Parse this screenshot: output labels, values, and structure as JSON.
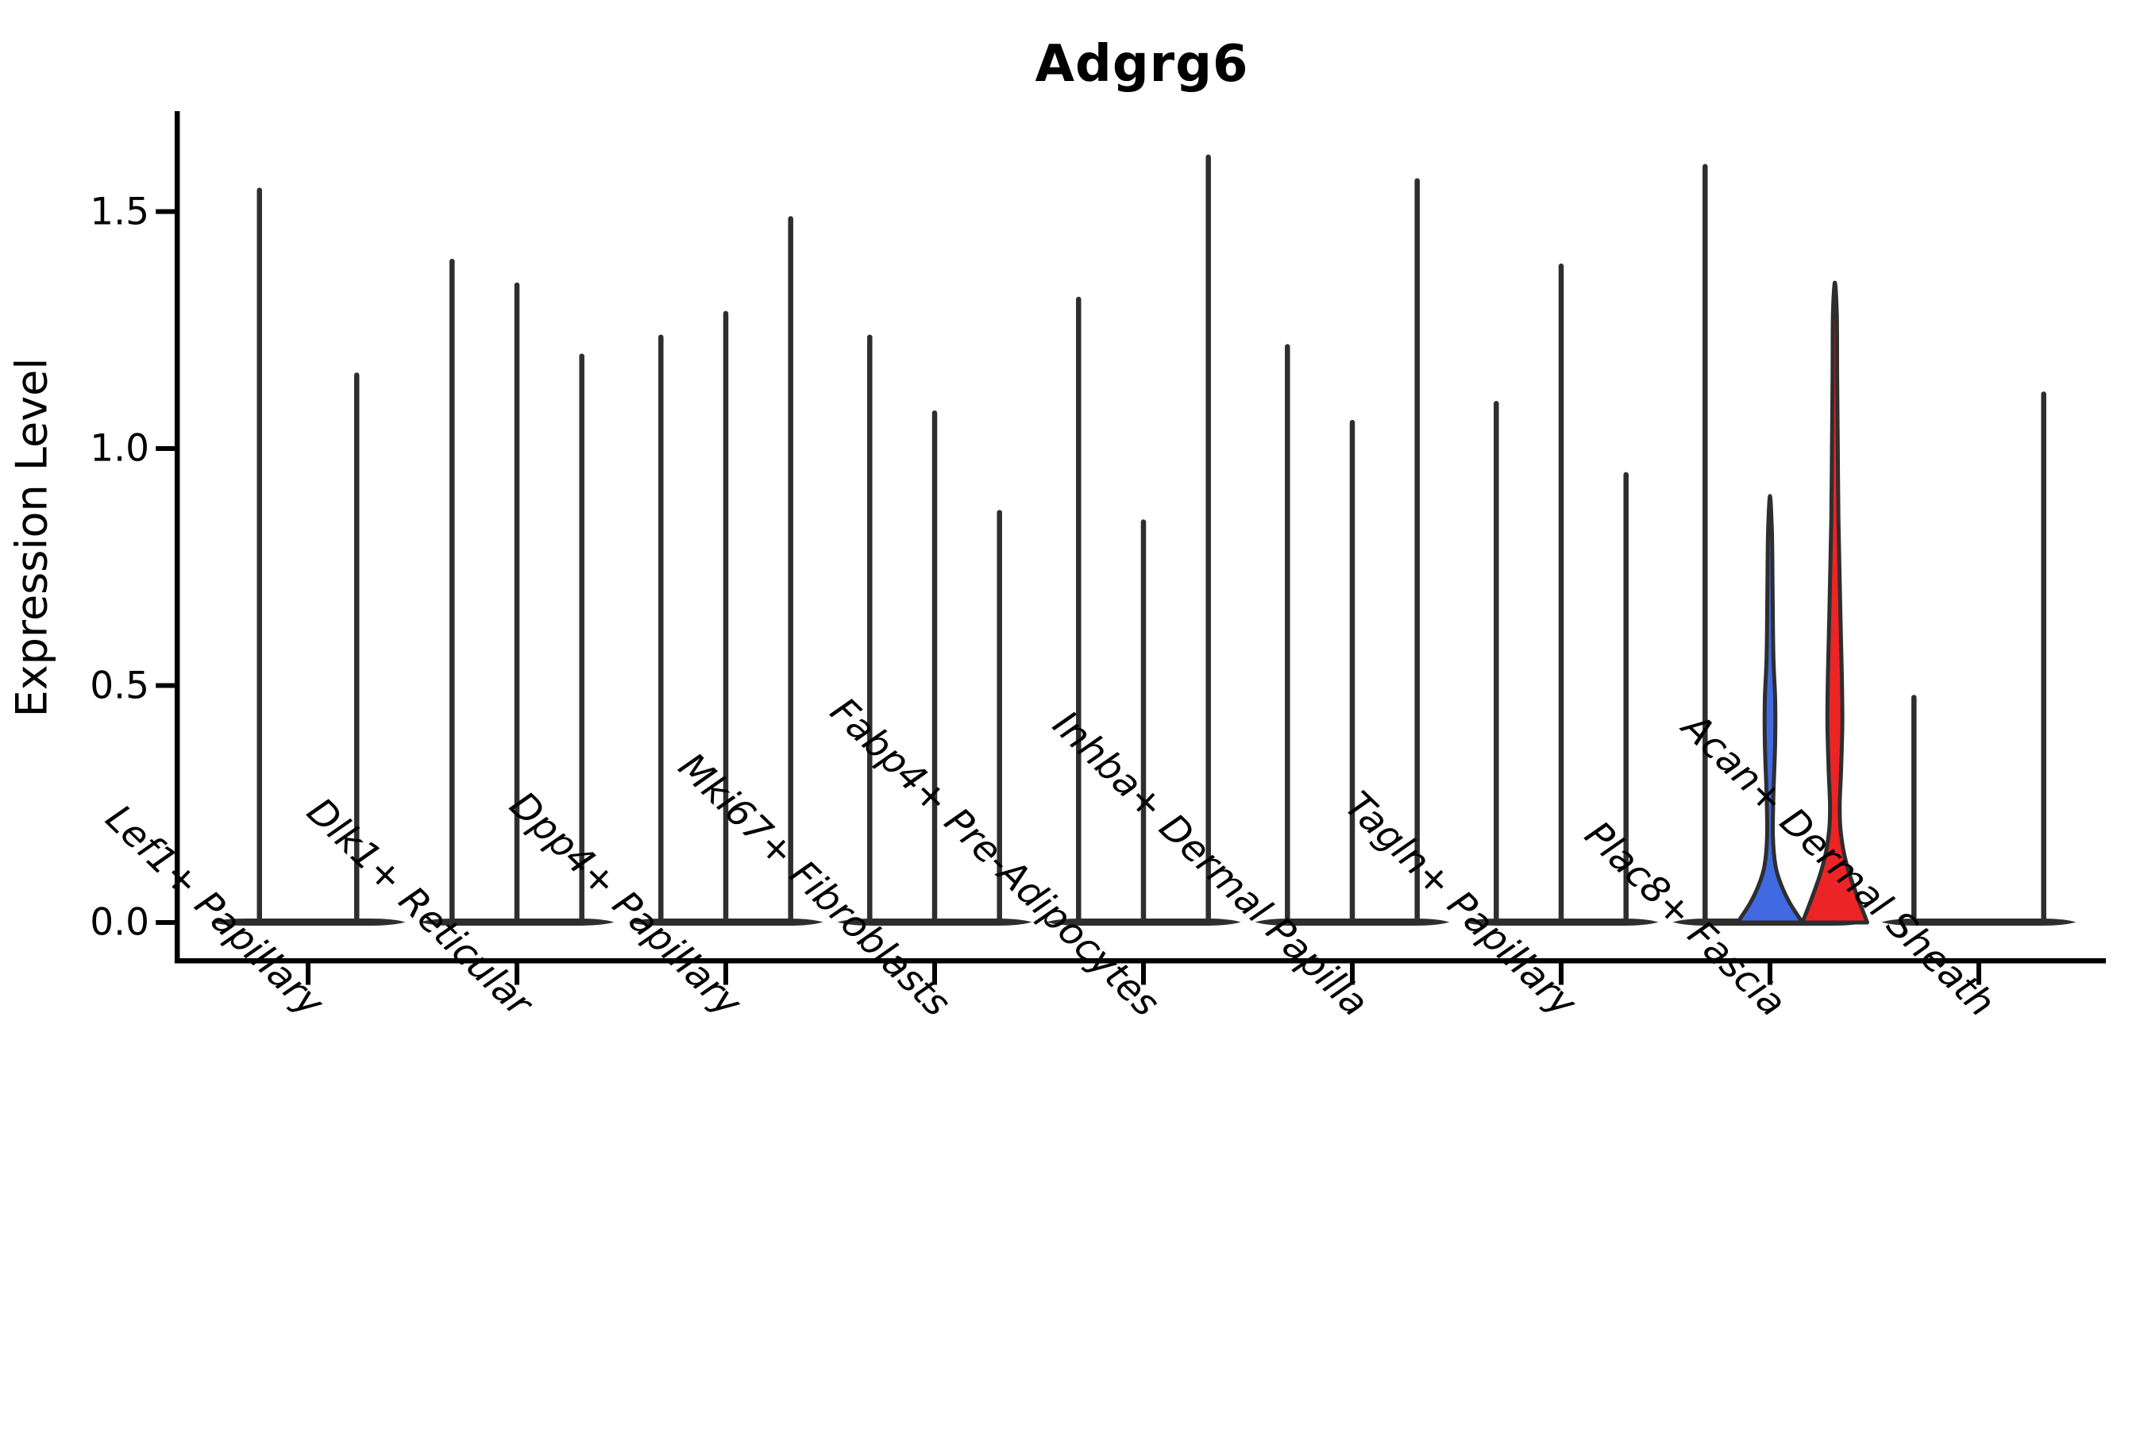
{
  "title": "Adgrg6",
  "chart_data": {
    "type": "violin",
    "title": "Adgrg6",
    "xlabel": "",
    "ylabel": "Expression Level",
    "yticks": [
      0.0,
      0.5,
      1.0,
      1.5
    ],
    "ytick_labels": [
      "0.0",
      "0.5",
      "1.0",
      "1.5"
    ],
    "ylim": [
      -0.09,
      1.7
    ],
    "grid": false,
    "legend_position": "none",
    "categories": [
      "Lef1+ Papillary",
      "Dlk1+ Reticular",
      "Dpp4+ Papillary",
      "Mki67+ Fibroblasts",
      "Fabp4+ Pre-Adipocytes",
      "Inhba+ Dermal Papilla",
      "Tagln+ Papillary",
      "Plac8+ Fascia",
      "Acan+ Dermal Sheath"
    ],
    "groups": [
      {
        "category": "Lef1+ Papillary",
        "violins": [
          {
            "slot": -0.5,
            "max": 1.55
          },
          {
            "slot": 0.5,
            "max": 1.16
          }
        ]
      },
      {
        "category": "Dlk1+ Reticular",
        "violins": [
          {
            "slot": -1,
            "max": 1.4
          },
          {
            "slot": 0,
            "max": 1.35
          },
          {
            "slot": 1,
            "max": 1.2
          }
        ]
      },
      {
        "category": "Dpp4+ Papillary",
        "violins": [
          {
            "slot": -1,
            "max": 1.24
          },
          {
            "slot": 0,
            "max": 1.29
          },
          {
            "slot": 1,
            "max": 1.49
          }
        ]
      },
      {
        "category": "Mki67+ Fibroblasts",
        "violins": [
          {
            "slot": -1,
            "max": 1.24
          },
          {
            "slot": 0,
            "max": 1.08
          },
          {
            "slot": 1,
            "max": 0.87
          }
        ]
      },
      {
        "category": "Fabp4+ Pre-Adipocytes",
        "violins": [
          {
            "slot": -1,
            "max": 1.32
          },
          {
            "slot": 0,
            "max": 0.85
          },
          {
            "slot": 1,
            "max": 1.62
          }
        ]
      },
      {
        "category": "Inhba+ Dermal Papilla",
        "violins": [
          {
            "slot": -1,
            "max": 1.22
          },
          {
            "slot": 0,
            "max": 1.06
          },
          {
            "slot": 1,
            "max": 1.57
          }
        ]
      },
      {
        "category": "Tagln+ Papillary",
        "violins": [
          {
            "slot": -1,
            "max": 1.1
          },
          {
            "slot": 0,
            "max": 1.39
          },
          {
            "slot": 1,
            "max": 0.95
          }
        ]
      },
      {
        "category": "Plac8+ Fascia",
        "violins": [
          {
            "slot": -1,
            "max": 1.6
          },
          {
            "slot": 0,
            "max": 0.9,
            "fill": "#4169E1",
            "profile": [
              [
                0,
                1.0
              ],
              [
                0.04,
                0.62
              ],
              [
                0.08,
                0.34
              ],
              [
                0.12,
                0.17
              ],
              [
                0.18,
                0.09
              ],
              [
                0.27,
                0.105
              ],
              [
                0.38,
                0.16
              ],
              [
                0.47,
                0.16
              ],
              [
                0.56,
                0.105
              ],
              [
                0.7,
                0.08
              ],
              [
                0.82,
                0.06
              ],
              [
                0.9,
                0.0
              ]
            ]
          },
          {
            "slot": 1,
            "max": 1.35,
            "fill": "#EC2426",
            "profile": [
              [
                0,
                1.0
              ],
              [
                0.05,
                0.72
              ],
              [
                0.1,
                0.46
              ],
              [
                0.15,
                0.27
              ],
              [
                0.2,
                0.17
              ],
              [
                0.25,
                0.15
              ],
              [
                0.32,
                0.19
              ],
              [
                0.42,
                0.23
              ],
              [
                0.52,
                0.215
              ],
              [
                0.62,
                0.18
              ],
              [
                0.72,
                0.15
              ],
              [
                0.85,
                0.11
              ],
              [
                1.0,
                0.09
              ],
              [
                1.15,
                0.07
              ],
              [
                1.28,
                0.06
              ],
              [
                1.35,
                0.0
              ]
            ]
          }
        ]
      },
      {
        "category": "Acan+ Dermal Sheath",
        "violins": [
          {
            "slot": -1,
            "max": 0.48
          },
          {
            "slot": 0,
            "max": 0.0
          },
          {
            "slot": 1,
            "max": 1.12
          }
        ]
      }
    ],
    "colors": {
      "violin_outline": "#2e2e2e",
      "default_fill": "#ffffff",
      "highlight_blue": "#4169E1",
      "highlight_red": "#EC2426",
      "axis": "#000000",
      "background": "#ffffff"
    }
  }
}
